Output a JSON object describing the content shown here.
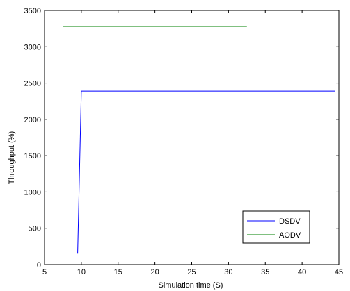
{
  "chart_data": {
    "type": "line",
    "title": "",
    "xlabel": "Simulation time (S)",
    "ylabel": "Throughput (%)",
    "xlim": [
      5,
      45
    ],
    "ylim": [
      0,
      3500
    ],
    "xticks": [
      5,
      10,
      15,
      20,
      25,
      30,
      35,
      40,
      45
    ],
    "yticks": [
      0,
      500,
      1000,
      1500,
      2000,
      2500,
      3000,
      3500
    ],
    "grid": false,
    "legend_position": "bottom-right",
    "series": [
      {
        "name": "DSDV",
        "color": "#0000ff",
        "x": [
          9.5,
          10,
          44.5
        ],
        "y": [
          150,
          2390,
          2390
        ]
      },
      {
        "name": "AODV",
        "color": "#008000",
        "x": [
          7.5,
          32.5
        ],
        "y": [
          3280,
          3280
        ]
      }
    ]
  }
}
